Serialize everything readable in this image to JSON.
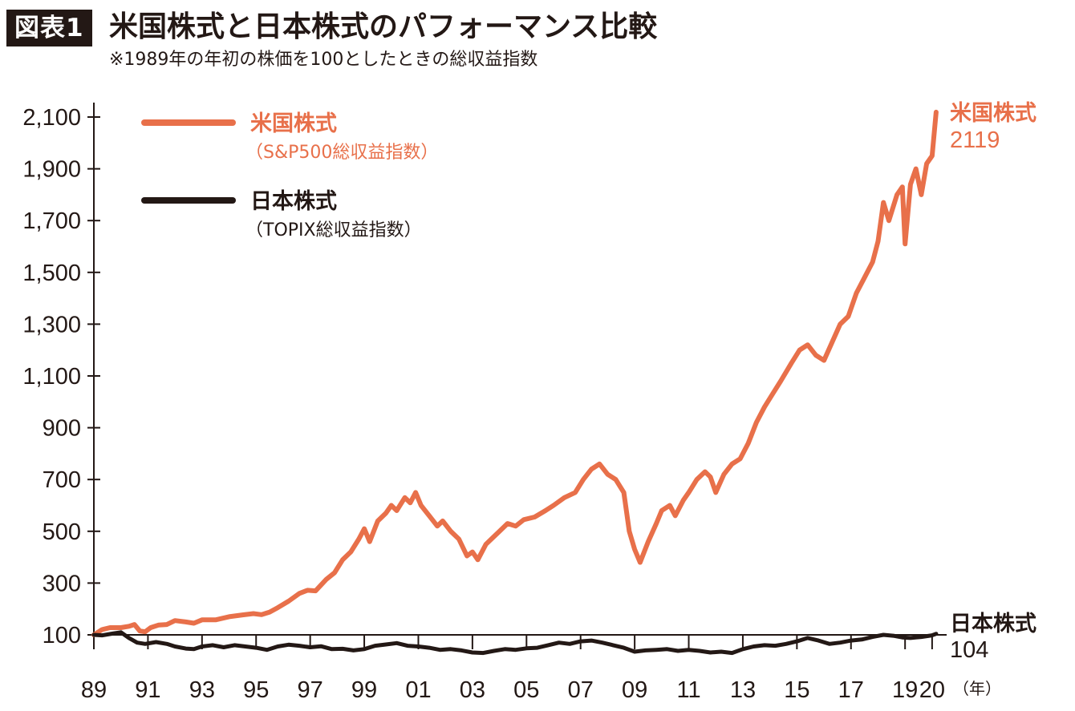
{
  "figure": {
    "badge": "図表1",
    "title": "米国株式と日本株式のパフォーマンス比較",
    "subtitle": "※1989年の年初の株価を100としたときの総収益指数"
  },
  "colors": {
    "us": "#E8704A",
    "jp": "#231815",
    "axis": "#231815"
  },
  "chart_data": {
    "type": "line",
    "ylim": [
      100,
      2100
    ],
    "yticks": [
      "2,100",
      "1,900",
      "1,700",
      "1,500",
      "1,300",
      "1,100",
      "900",
      "700",
      "500",
      "300",
      "100"
    ],
    "ytick_values": [
      2100,
      1900,
      1700,
      1500,
      1300,
      1100,
      900,
      700,
      500,
      300,
      100
    ],
    "xlim": [
      1989,
      2020.3
    ],
    "xticks": [
      "89",
      "91",
      "93",
      "95",
      "97",
      "99",
      "01",
      "03",
      "05",
      "07",
      "09",
      "11",
      "13",
      "15",
      "17",
      "19",
      "20"
    ],
    "xtick_values": [
      1989,
      1991,
      1993,
      1995,
      1997,
      1999,
      2001,
      2003,
      2005,
      2007,
      2009,
      2011,
      2013,
      2015,
      2017,
      2019,
      2020
    ],
    "x_unit": "（年）",
    "grid": false,
    "legend_position": "top-left",
    "series": [
      {
        "name": "米国株式",
        "subname": "（S&P500総収益指数）",
        "color": "#E8704A",
        "end_label": "米国株式",
        "end_value": "2119",
        "points": [
          [
            1989.0,
            100
          ],
          [
            1989.3,
            120
          ],
          [
            1989.6,
            128
          ],
          [
            1990.0,
            128
          ],
          [
            1990.3,
            133
          ],
          [
            1990.5,
            140
          ],
          [
            1990.7,
            115
          ],
          [
            1990.9,
            112
          ],
          [
            1991.1,
            128
          ],
          [
            1991.4,
            138
          ],
          [
            1991.7,
            140
          ],
          [
            1992.0,
            155
          ],
          [
            1992.4,
            150
          ],
          [
            1992.7,
            145
          ],
          [
            1993.0,
            158
          ],
          [
            1993.5,
            158
          ],
          [
            1994.0,
            170
          ],
          [
            1994.5,
            177
          ],
          [
            1994.9,
            182
          ],
          [
            1995.2,
            178
          ],
          [
            1995.5,
            188
          ],
          [
            1995.8,
            205
          ],
          [
            1996.2,
            230
          ],
          [
            1996.6,
            260
          ],
          [
            1996.9,
            272
          ],
          [
            1997.2,
            270
          ],
          [
            1997.6,
            315
          ],
          [
            1997.9,
            340
          ],
          [
            1998.2,
            390
          ],
          [
            1998.5,
            420
          ],
          [
            1998.8,
            470
          ],
          [
            1999.0,
            510
          ],
          [
            1999.2,
            460
          ],
          [
            1999.5,
            540
          ],
          [
            1999.8,
            570
          ],
          [
            2000.0,
            600
          ],
          [
            2000.2,
            580
          ],
          [
            2000.5,
            630
          ],
          [
            2000.7,
            610
          ],
          [
            2000.9,
            650
          ],
          [
            2001.1,
            600
          ],
          [
            2001.4,
            560
          ],
          [
            2001.7,
            520
          ],
          [
            2001.9,
            540
          ],
          [
            2002.2,
            500
          ],
          [
            2002.5,
            470
          ],
          [
            2002.8,
            405
          ],
          [
            2003.0,
            420
          ],
          [
            2003.2,
            390
          ],
          [
            2003.5,
            450
          ],
          [
            2003.8,
            480
          ],
          [
            2004.0,
            500
          ],
          [
            2004.3,
            530
          ],
          [
            2004.6,
            520
          ],
          [
            2004.9,
            545
          ],
          [
            2005.3,
            555
          ],
          [
            2005.7,
            580
          ],
          [
            2006.0,
            600
          ],
          [
            2006.4,
            630
          ],
          [
            2006.8,
            650
          ],
          [
            2007.1,
            700
          ],
          [
            2007.4,
            740
          ],
          [
            2007.7,
            760
          ],
          [
            2008.0,
            720
          ],
          [
            2008.3,
            700
          ],
          [
            2008.6,
            650
          ],
          [
            2008.8,
            500
          ],
          [
            2009.0,
            430
          ],
          [
            2009.2,
            380
          ],
          [
            2009.5,
            460
          ],
          [
            2009.8,
            530
          ],
          [
            2010.0,
            580
          ],
          [
            2010.3,
            600
          ],
          [
            2010.5,
            560
          ],
          [
            2010.8,
            620
          ],
          [
            2011.0,
            650
          ],
          [
            2011.3,
            700
          ],
          [
            2011.6,
            730
          ],
          [
            2011.8,
            710
          ],
          [
            2012.0,
            650
          ],
          [
            2012.3,
            720
          ],
          [
            2012.6,
            760
          ],
          [
            2012.9,
            780
          ],
          [
            2013.2,
            840
          ],
          [
            2013.5,
            920
          ],
          [
            2013.8,
            980
          ],
          [
            2014.1,
            1030
          ],
          [
            2014.4,
            1080
          ],
          [
            2014.8,
            1150
          ],
          [
            2015.1,
            1200
          ],
          [
            2015.4,
            1220
          ],
          [
            2015.7,
            1180
          ],
          [
            2016.0,
            1160
          ],
          [
            2016.3,
            1230
          ],
          [
            2016.6,
            1300
          ],
          [
            2016.9,
            1330
          ],
          [
            2017.2,
            1420
          ],
          [
            2017.5,
            1480
          ],
          [
            2017.8,
            1540
          ],
          [
            2018.0,
            1620
          ],
          [
            2018.2,
            1770
          ],
          [
            2018.4,
            1700
          ],
          [
            2018.7,
            1800
          ],
          [
            2018.9,
            1830
          ],
          [
            2019.0,
            1610
          ],
          [
            2019.2,
            1840
          ],
          [
            2019.4,
            1900
          ],
          [
            2019.6,
            1800
          ],
          [
            2019.8,
            1920
          ],
          [
            2020.0,
            1950
          ],
          [
            2020.15,
            2119
          ]
        ]
      },
      {
        "name": "日本株式",
        "subname": "（TOPIX総収益指数）",
        "color": "#231815",
        "end_label": "日本株式",
        "end_value": "104",
        "points": [
          [
            1989.0,
            100
          ],
          [
            1989.3,
            98
          ],
          [
            1989.7,
            105
          ],
          [
            1990.0,
            110
          ],
          [
            1990.3,
            88
          ],
          [
            1990.6,
            70
          ],
          [
            1990.9,
            65
          ],
          [
            1991.3,
            72
          ],
          [
            1991.7,
            65
          ],
          [
            1992.0,
            55
          ],
          [
            1992.4,
            47
          ],
          [
            1992.7,
            45
          ],
          [
            1993.0,
            55
          ],
          [
            1993.4,
            60
          ],
          [
            1993.8,
            52
          ],
          [
            1994.2,
            60
          ],
          [
            1994.6,
            55
          ],
          [
            1995.0,
            50
          ],
          [
            1995.4,
            42
          ],
          [
            1995.8,
            55
          ],
          [
            1996.2,
            62
          ],
          [
            1996.6,
            58
          ],
          [
            1997.0,
            52
          ],
          [
            1997.4,
            56
          ],
          [
            1997.8,
            45
          ],
          [
            1998.2,
            46
          ],
          [
            1998.6,
            40
          ],
          [
            1999.0,
            45
          ],
          [
            1999.4,
            58
          ],
          [
            1999.8,
            63
          ],
          [
            2000.2,
            68
          ],
          [
            2000.6,
            58
          ],
          [
            2001.0,
            55
          ],
          [
            2001.4,
            50
          ],
          [
            2001.8,
            42
          ],
          [
            2002.2,
            45
          ],
          [
            2002.6,
            40
          ],
          [
            2003.0,
            32
          ],
          [
            2003.4,
            30
          ],
          [
            2003.8,
            38
          ],
          [
            2004.2,
            45
          ],
          [
            2004.6,
            42
          ],
          [
            2005.0,
            48
          ],
          [
            2005.4,
            50
          ],
          [
            2005.8,
            60
          ],
          [
            2006.2,
            70
          ],
          [
            2006.6,
            65
          ],
          [
            2007.0,
            75
          ],
          [
            2007.4,
            78
          ],
          [
            2007.8,
            70
          ],
          [
            2008.2,
            60
          ],
          [
            2008.6,
            50
          ],
          [
            2009.0,
            35
          ],
          [
            2009.4,
            40
          ],
          [
            2009.8,
            42
          ],
          [
            2010.2,
            45
          ],
          [
            2010.6,
            38
          ],
          [
            2011.0,
            42
          ],
          [
            2011.4,
            38
          ],
          [
            2011.8,
            32
          ],
          [
            2012.2,
            35
          ],
          [
            2012.6,
            30
          ],
          [
            2013.0,
            45
          ],
          [
            2013.4,
            55
          ],
          [
            2013.8,
            60
          ],
          [
            2014.2,
            58
          ],
          [
            2014.6,
            65
          ],
          [
            2015.0,
            75
          ],
          [
            2015.4,
            88
          ],
          [
            2015.8,
            78
          ],
          [
            2016.2,
            65
          ],
          [
            2016.6,
            70
          ],
          [
            2017.0,
            78
          ],
          [
            2017.4,
            82
          ],
          [
            2017.8,
            92
          ],
          [
            2018.2,
            100
          ],
          [
            2018.6,
            96
          ],
          [
            2018.9,
            90
          ],
          [
            2019.2,
            88
          ],
          [
            2019.6,
            92
          ],
          [
            2020.0,
            98
          ],
          [
            2020.15,
            104
          ]
        ]
      }
    ]
  }
}
